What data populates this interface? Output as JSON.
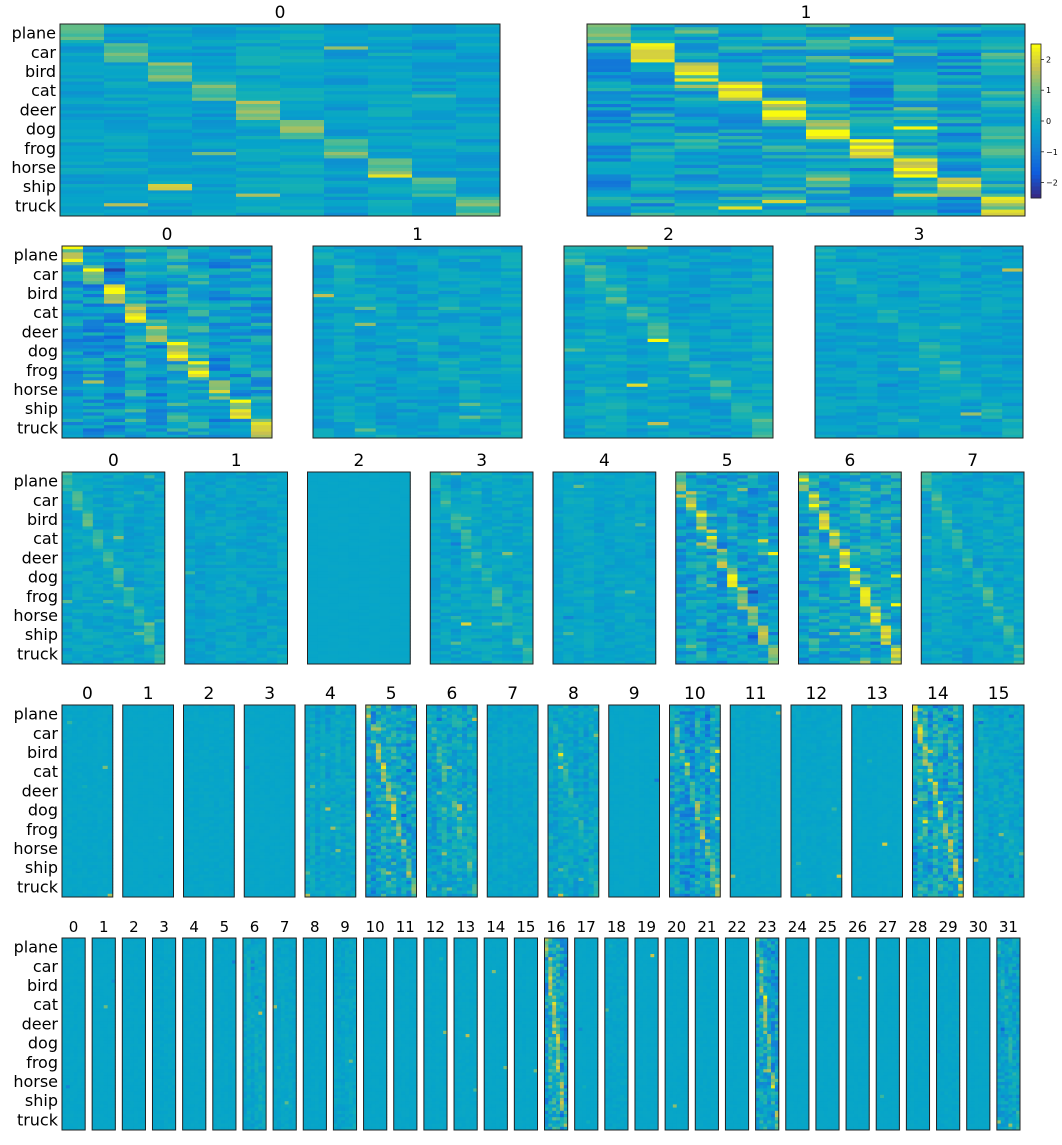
{
  "chart_data": {
    "type": "heatmap",
    "description_rows": [
      "plane",
      "car",
      "bird",
      "cat",
      "deer",
      "dog",
      "frog",
      "horse",
      "ship",
      "truck"
    ],
    "rows": [
      {
        "panel_titles": [
          "0",
          "1"
        ],
        "panels": [
          {
            "title": "0",
            "value_columns": 10,
            "diagonal_strength": 0.55,
            "texture": 0.25,
            "seed": 11
          },
          {
            "title": "1",
            "value_columns": 10,
            "diagonal_strength": 1.0,
            "texture": 0.55,
            "seed": 23
          }
        ]
      },
      {
        "panel_titles": [
          "0",
          "1",
          "2",
          "3"
        ],
        "panels": [
          {
            "title": "0",
            "value_columns": 10,
            "diagonal_strength": 0.95,
            "texture": 0.55,
            "seed": 31
          },
          {
            "title": "1",
            "value_columns": 10,
            "diagonal_strength": 0.15,
            "texture": 0.25,
            "seed": 37
          },
          {
            "title": "2",
            "value_columns": 10,
            "diagonal_strength": 0.3,
            "texture": 0.25,
            "seed": 41
          },
          {
            "title": "3",
            "value_columns": 10,
            "diagonal_strength": 0.2,
            "texture": 0.22,
            "seed": 43
          }
        ]
      },
      {
        "panel_titles": [
          "0",
          "1",
          "2",
          "3",
          "4",
          "5",
          "6",
          "7"
        ],
        "panels": [
          {
            "title": "0",
            "value_columns": 10,
            "diagonal_strength": 0.35,
            "texture": 0.22,
            "seed": 51
          },
          {
            "title": "1",
            "value_columns": 10,
            "diagonal_strength": 0.05,
            "texture": 0.18,
            "seed": 53
          },
          {
            "title": "2",
            "value_columns": 10,
            "diagonal_strength": 0.0,
            "texture": 0.02,
            "seed": 57
          },
          {
            "title": "3",
            "value_columns": 10,
            "diagonal_strength": 0.3,
            "texture": 0.22,
            "seed": 59
          },
          {
            "title": "4",
            "value_columns": 10,
            "diagonal_strength": 0.05,
            "texture": 0.15,
            "seed": 61
          },
          {
            "title": "5",
            "value_columns": 10,
            "diagonal_strength": 0.8,
            "texture": 0.45,
            "seed": 67
          },
          {
            "title": "6",
            "value_columns": 10,
            "diagonal_strength": 0.85,
            "texture": 0.5,
            "seed": 71
          },
          {
            "title": "7",
            "value_columns": 10,
            "diagonal_strength": 0.3,
            "texture": 0.22,
            "seed": 73
          }
        ]
      },
      {
        "panel_titles": [
          "0",
          "1",
          "2",
          "3",
          "4",
          "5",
          "6",
          "7",
          "8",
          "9",
          "10",
          "11",
          "12",
          "13",
          "14",
          "15"
        ],
        "panels": [
          {
            "title": "0",
            "value_columns": 10,
            "diagonal_strength": 0.0,
            "texture": 0.05,
            "seed": 81
          },
          {
            "title": "1",
            "value_columns": 10,
            "diagonal_strength": 0.0,
            "texture": 0.02,
            "seed": 82
          },
          {
            "title": "2",
            "value_columns": 10,
            "diagonal_strength": 0.0,
            "texture": 0.05,
            "seed": 83
          },
          {
            "title": "3",
            "value_columns": 10,
            "diagonal_strength": 0.0,
            "texture": 0.03,
            "seed": 84
          },
          {
            "title": "4",
            "value_columns": 10,
            "diagonal_strength": 0.05,
            "texture": 0.2,
            "seed": 85
          },
          {
            "title": "5",
            "value_columns": 10,
            "diagonal_strength": 0.6,
            "texture": 0.5,
            "seed": 86
          },
          {
            "title": "6",
            "value_columns": 10,
            "diagonal_strength": 0.3,
            "texture": 0.35,
            "seed": 87
          },
          {
            "title": "7",
            "value_columns": 10,
            "diagonal_strength": 0.0,
            "texture": 0.1,
            "seed": 88
          },
          {
            "title": "8",
            "value_columns": 10,
            "diagonal_strength": 0.2,
            "texture": 0.25,
            "seed": 89
          },
          {
            "title": "9",
            "value_columns": 10,
            "diagonal_strength": 0.0,
            "texture": 0.03,
            "seed": 90
          },
          {
            "title": "10",
            "value_columns": 10,
            "diagonal_strength": 0.6,
            "texture": 0.5,
            "seed": 91
          },
          {
            "title": "11",
            "value_columns": 10,
            "diagonal_strength": 0.0,
            "texture": 0.06,
            "seed": 92
          },
          {
            "title": "12",
            "value_columns": 10,
            "diagonal_strength": 0.0,
            "texture": 0.06,
            "seed": 93
          },
          {
            "title": "13",
            "value_columns": 10,
            "diagonal_strength": 0.0,
            "texture": 0.04,
            "seed": 94
          },
          {
            "title": "14",
            "value_columns": 10,
            "diagonal_strength": 0.7,
            "texture": 0.55,
            "seed": 95
          },
          {
            "title": "15",
            "value_columns": 10,
            "diagonal_strength": 0.1,
            "texture": 0.2,
            "seed": 96
          }
        ]
      },
      {
        "panel_titles": [
          "0",
          "1",
          "2",
          "3",
          "4",
          "5",
          "6",
          "7",
          "8",
          "9",
          "10",
          "11",
          "12",
          "13",
          "14",
          "15",
          "16",
          "17",
          "18",
          "19",
          "20",
          "21",
          "22",
          "23",
          "24",
          "25",
          "26",
          "27",
          "28",
          "29",
          "30",
          "31"
        ],
        "panels": [
          {
            "title": "0",
            "value_columns": 6,
            "diagonal_strength": 0.0,
            "texture": 0.03,
            "seed": 101
          },
          {
            "title": "1",
            "value_columns": 6,
            "diagonal_strength": 0.0,
            "texture": 0.02,
            "seed": 102
          },
          {
            "title": "2",
            "value_columns": 6,
            "diagonal_strength": 0.0,
            "texture": 0.03,
            "seed": 103
          },
          {
            "title": "3",
            "value_columns": 6,
            "diagonal_strength": 0.0,
            "texture": 0.05,
            "seed": 104
          },
          {
            "title": "4",
            "value_columns": 6,
            "diagonal_strength": 0.0,
            "texture": 0.03,
            "seed": 105
          },
          {
            "title": "5",
            "value_columns": 6,
            "diagonal_strength": 0.0,
            "texture": 0.04,
            "seed": 106
          },
          {
            "title": "6",
            "value_columns": 6,
            "diagonal_strength": 0.1,
            "texture": 0.15,
            "seed": 107
          },
          {
            "title": "7",
            "value_columns": 6,
            "diagonal_strength": 0.05,
            "texture": 0.08,
            "seed": 108
          },
          {
            "title": "8",
            "value_columns": 6,
            "diagonal_strength": 0.0,
            "texture": 0.04,
            "seed": 109
          },
          {
            "title": "9",
            "value_columns": 6,
            "diagonal_strength": 0.05,
            "texture": 0.12,
            "seed": 110
          },
          {
            "title": "10",
            "value_columns": 6,
            "diagonal_strength": 0.0,
            "texture": 0.02,
            "seed": 111
          },
          {
            "title": "11",
            "value_columns": 6,
            "diagonal_strength": 0.0,
            "texture": 0.03,
            "seed": 112
          },
          {
            "title": "12",
            "value_columns": 6,
            "diagonal_strength": 0.0,
            "texture": 0.03,
            "seed": 113
          },
          {
            "title": "13",
            "value_columns": 6,
            "diagonal_strength": 0.0,
            "texture": 0.04,
            "seed": 114
          },
          {
            "title": "14",
            "value_columns": 6,
            "diagonal_strength": 0.0,
            "texture": 0.02,
            "seed": 115
          },
          {
            "title": "15",
            "value_columns": 6,
            "diagonal_strength": 0.0,
            "texture": 0.03,
            "seed": 116
          },
          {
            "title": "16",
            "value_columns": 6,
            "diagonal_strength": 0.6,
            "texture": 0.55,
            "seed": 117
          },
          {
            "title": "17",
            "value_columns": 6,
            "diagonal_strength": 0.0,
            "texture": 0.02,
            "seed": 118
          },
          {
            "title": "18",
            "value_columns": 6,
            "diagonal_strength": 0.0,
            "texture": 0.07,
            "seed": 119
          },
          {
            "title": "19",
            "value_columns": 6,
            "diagonal_strength": 0.0,
            "texture": 0.02,
            "seed": 120
          },
          {
            "title": "20",
            "value_columns": 6,
            "diagonal_strength": 0.0,
            "texture": 0.02,
            "seed": 121
          },
          {
            "title": "21",
            "value_columns": 6,
            "diagonal_strength": 0.0,
            "texture": 0.03,
            "seed": 122
          },
          {
            "title": "22",
            "value_columns": 6,
            "diagonal_strength": 0.0,
            "texture": 0.02,
            "seed": 123
          },
          {
            "title": "23",
            "value_columns": 6,
            "diagonal_strength": 0.6,
            "texture": 0.5,
            "seed": 124
          },
          {
            "title": "24",
            "value_columns": 6,
            "diagonal_strength": 0.0,
            "texture": 0.02,
            "seed": 125
          },
          {
            "title": "25",
            "value_columns": 6,
            "diagonal_strength": 0.0,
            "texture": 0.02,
            "seed": 126
          },
          {
            "title": "26",
            "value_columns": 6,
            "diagonal_strength": 0.0,
            "texture": 0.02,
            "seed": 127
          },
          {
            "title": "27",
            "value_columns": 6,
            "diagonal_strength": 0.0,
            "texture": 0.02,
            "seed": 128
          },
          {
            "title": "28",
            "value_columns": 6,
            "diagonal_strength": 0.0,
            "texture": 0.03,
            "seed": 129
          },
          {
            "title": "29",
            "value_columns": 6,
            "diagonal_strength": 0.0,
            "texture": 0.05,
            "seed": 130
          },
          {
            "title": "30",
            "value_columns": 6,
            "diagonal_strength": 0.0,
            "texture": 0.02,
            "seed": 131
          },
          {
            "title": "31",
            "value_columns": 6,
            "diagonal_strength": 0.2,
            "texture": 0.3,
            "seed": 132
          }
        ]
      }
    ],
    "row_labels": [
      "plane",
      "car",
      "bird",
      "cat",
      "deer",
      "dog",
      "frog",
      "horse",
      "ship",
      "truck"
    ],
    "colorbar": {
      "ticks": [
        2,
        1,
        0,
        -1,
        -2
      ],
      "tick_labels": [
        "2",
        "1",
        "0",
        "−1",
        "−2"
      ],
      "range": [
        -2.5,
        2.5
      ]
    },
    "colormap": "parula",
    "value_range": [
      -2.5,
      2.5
    ]
  }
}
